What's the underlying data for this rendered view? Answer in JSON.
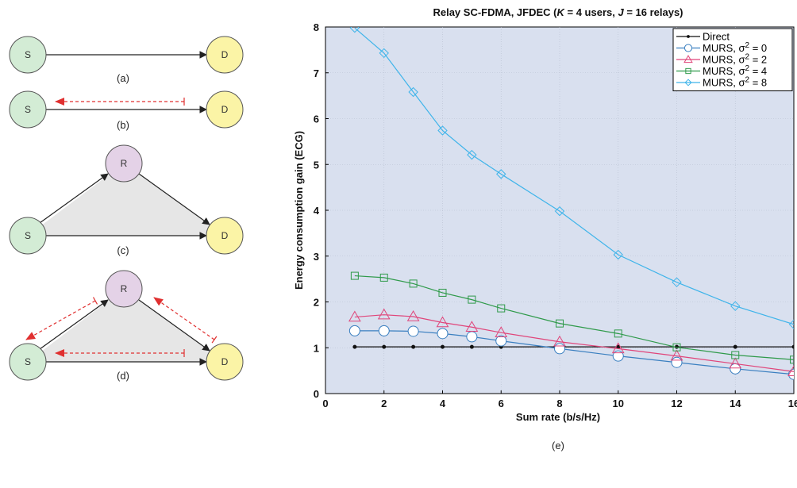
{
  "diagrams": {
    "node_labels": {
      "source": "S",
      "destination": "D",
      "relay": "R"
    },
    "panel_labels": {
      "a": "(a)",
      "b": "(b)",
      "c": "(c)",
      "d": "(d)"
    },
    "colors": {
      "source_fill": "#d3ecd5",
      "destination_fill": "#fbf4a6",
      "relay_fill": "#e4d2e7",
      "node_stroke": "#555555",
      "triangle_fill": "#e6e6e6",
      "feedback_arrow": "#e03030"
    }
  },
  "chart_data": {
    "type": "line",
    "title_parts": [
      {
        "text": "Relay SC-FDMA, JFDEC (",
        "italic": false
      },
      {
        "text": "K",
        "italic": true
      },
      {
        "text": " = 4 users, ",
        "italic": false
      },
      {
        "text": "J",
        "italic": true
      },
      {
        "text": " = 16 relays)",
        "italic": false
      }
    ],
    "xlabel": "Sum rate (b/s/Hz)",
    "ylabel": "Energy consumption gain (ECG)",
    "panel_label": "(e)",
    "xlim": [
      0,
      16
    ],
    "ylim": [
      0,
      8
    ],
    "xticks": [
      0,
      2,
      4,
      6,
      8,
      10,
      12,
      14,
      16
    ],
    "yticks": [
      0,
      1,
      2,
      3,
      4,
      5,
      6,
      7,
      8
    ],
    "grid": true,
    "legend_position": "top-right",
    "background": "#d9e0ef",
    "series": [
      {
        "name": "Direct",
        "color": "#111111",
        "marker": "dot",
        "x": [
          1,
          2,
          3,
          4,
          5,
          6,
          8,
          10,
          12,
          14,
          16
        ],
        "y": [
          1.02,
          1.02,
          1.02,
          1.02,
          1.02,
          1.02,
          1.02,
          1.02,
          1.02,
          1.02,
          1.02
        ]
      },
      {
        "name": "MURS, σ² = 0",
        "legend_prefix": "MURS, σ",
        "legend_sup": "2",
        "legend_suffix": " = 0",
        "color": "#3a7fc0",
        "marker": "circle",
        "x": [
          1,
          2,
          3,
          4,
          5,
          6,
          8,
          10,
          12,
          14,
          16
        ],
        "y": [
          1.37,
          1.37,
          1.36,
          1.31,
          1.24,
          1.15,
          0.98,
          0.82,
          0.68,
          0.54,
          0.42
        ]
      },
      {
        "name": "MURS, σ² = 2",
        "legend_prefix": "MURS, σ",
        "legend_sup": "2",
        "legend_suffix": " = 2",
        "color": "#e0457a",
        "marker": "triangle",
        "x": [
          1,
          2,
          3,
          4,
          5,
          6,
          8,
          10,
          12,
          14,
          16
        ],
        "y": [
          1.67,
          1.72,
          1.68,
          1.55,
          1.45,
          1.33,
          1.13,
          0.98,
          0.82,
          0.65,
          0.48
        ]
      },
      {
        "name": "MURS, σ² = 4",
        "legend_prefix": "MURS, σ",
        "legend_sup": "2",
        "legend_suffix": " = 4",
        "color": "#2f9a4a",
        "marker": "square",
        "x": [
          1,
          2,
          3,
          4,
          5,
          6,
          8,
          10,
          12,
          14,
          16
        ],
        "y": [
          2.57,
          2.53,
          2.4,
          2.2,
          2.05,
          1.86,
          1.53,
          1.31,
          1.01,
          0.84,
          0.74
        ]
      },
      {
        "name": "MURS, σ² = 8",
        "legend_prefix": "MURS, σ",
        "legend_sup": "2",
        "legend_suffix": " = 8",
        "color": "#3fb4ea",
        "marker": "diamond",
        "x": [
          1,
          2,
          3,
          4,
          5,
          6,
          8,
          10,
          12,
          14,
          16
        ],
        "y": [
          7.98,
          7.43,
          6.58,
          5.74,
          5.21,
          4.79,
          3.98,
          3.03,
          2.43,
          1.91,
          1.51
        ]
      }
    ]
  }
}
